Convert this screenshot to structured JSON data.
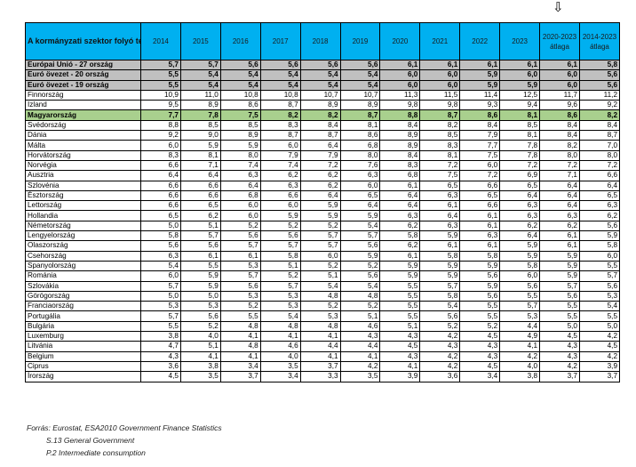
{
  "marker_arrow": "⇩",
  "header": {
    "label": "A kormányzati szektor folyó termelő felhasználása",
    "columns": [
      "2014",
      "2015",
      "2016",
      "2017",
      "2018",
      "2019",
      "2020",
      "2021",
      "2022",
      "2023",
      "2020-2023 átlaga",
      "2014-2023 átlaga"
    ]
  },
  "colors": {
    "header": "#00b0f0",
    "aggregate": "#c0c0c0",
    "highlight": "#a9d08e"
  },
  "rows": [
    {
      "name": "Európai Unió - 27 ország",
      "type": "agg",
      "values": [
        "5,7",
        "5,7",
        "5,6",
        "5,6",
        "5,6",
        "5,6",
        "6,1",
        "6,1",
        "6,1",
        "6,1",
        "6,1",
        "5,8"
      ]
    },
    {
      "name": "Euró övezet - 20 ország",
      "type": "agg",
      "values": [
        "5,5",
        "5,4",
        "5,4",
        "5,4",
        "5,4",
        "5,4",
        "6,0",
        "6,0",
        "5,9",
        "6,0",
        "6,0",
        "5,6"
      ]
    },
    {
      "name": "Euró övezet - 19 ország",
      "type": "agg",
      "values": [
        "5,5",
        "5,4",
        "5,4",
        "5,4",
        "5,4",
        "5,4",
        "6,0",
        "6,0",
        "5,9",
        "5,9",
        "6,0",
        "5,6"
      ]
    },
    {
      "name": "Finnország",
      "type": "",
      "values": [
        "10,9",
        "11,0",
        "10,8",
        "10,8",
        "10,7",
        "10,7",
        "11,3",
        "11,5",
        "11,4",
        "12,5",
        "11,7",
        "11,2"
      ]
    },
    {
      "name": "Izland",
      "type": "",
      "values": [
        "9,5",
        "8,9",
        "8,6",
        "8,7",
        "8,9",
        "8,9",
        "9,8",
        "9,8",
        "9,3",
        "9,4",
        "9,6",
        "9,2"
      ]
    },
    {
      "name": "Magyarország",
      "type": "hu",
      "values": [
        "7,7",
        "7,8",
        "7,5",
        "8,2",
        "8,2",
        "8,7",
        "8,8",
        "8,7",
        "8,6",
        "8,1",
        "8,6",
        "8,2"
      ]
    },
    {
      "name": "Svédország",
      "type": "",
      "values": [
        "8,8",
        "8,5",
        "8,5",
        "8,3",
        "8,4",
        "8,1",
        "8,4",
        "8,2",
        "8,4",
        "8,5",
        "8,4",
        "8,4"
      ]
    },
    {
      "name": "Dánia",
      "type": "",
      "values": [
        "9,2",
        "9,0",
        "8,9",
        "8,7",
        "8,7",
        "8,6",
        "8,9",
        "8,5",
        "7,9",
        "8,1",
        "8,4",
        "8,7"
      ]
    },
    {
      "name": "Málta",
      "type": "",
      "values": [
        "6,0",
        "5,9",
        "5,9",
        "6,0",
        "6,4",
        "6,8",
        "8,9",
        "8,3",
        "7,7",
        "7,8",
        "8,2",
        "7,0"
      ]
    },
    {
      "name": "Horvátország",
      "type": "",
      "values": [
        "8,3",
        "8,1",
        "8,0",
        "7,9",
        "7,9",
        "8,0",
        "8,4",
        "8,1",
        "7,5",
        "7,8",
        "8,0",
        "8,0"
      ]
    },
    {
      "name": "Norvégia",
      "type": "",
      "values": [
        "6,6",
        "7,1",
        "7,4",
        "7,4",
        "7,2",
        "7,6",
        "8,3",
        "7,2",
        "6,0",
        "7,2",
        "7,2",
        "7,2"
      ]
    },
    {
      "name": "Ausztria",
      "type": "",
      "values": [
        "6,4",
        "6,4",
        "6,3",
        "6,2",
        "6,2",
        "6,3",
        "6,8",
        "7,5",
        "7,2",
        "6,9",
        "7,1",
        "6,6"
      ]
    },
    {
      "name": "Szlovénia",
      "type": "",
      "values": [
        "6,6",
        "6,6",
        "6,4",
        "6,3",
        "6,2",
        "6,0",
        "6,1",
        "6,5",
        "6,6",
        "6,5",
        "6,4",
        "6,4"
      ]
    },
    {
      "name": "Észtország",
      "type": "",
      "values": [
        "6,6",
        "6,6",
        "6,8",
        "6,6",
        "6,4",
        "6,5",
        "6,4",
        "6,3",
        "6,5",
        "6,4",
        "6,4",
        "6,5"
      ]
    },
    {
      "name": "Lettország",
      "type": "",
      "values": [
        "6,6",
        "6,5",
        "6,0",
        "6,0",
        "5,9",
        "6,4",
        "6,4",
        "6,1",
        "6,6",
        "6,3",
        "6,4",
        "6,3"
      ]
    },
    {
      "name": "Hollandia",
      "type": "",
      "values": [
        "6,5",
        "6,2",
        "6,0",
        "5,9",
        "5,9",
        "5,9",
        "6,3",
        "6,4",
        "6,1",
        "6,3",
        "6,3",
        "6,2"
      ]
    },
    {
      "name": "Németország",
      "type": "",
      "values": [
        "5,0",
        "5,1",
        "5,2",
        "5,2",
        "5,2",
        "5,4",
        "6,2",
        "6,3",
        "6,1",
        "6,2",
        "6,2",
        "5,6"
      ]
    },
    {
      "name": "Lengyelország",
      "type": "",
      "values": [
        "5,8",
        "5,7",
        "5,6",
        "5,6",
        "5,7",
        "5,7",
        "5,8",
        "5,9",
        "6,3",
        "6,4",
        "6,1",
        "5,9"
      ]
    },
    {
      "name": "Olaszország",
      "type": "",
      "values": [
        "5,6",
        "5,6",
        "5,7",
        "5,7",
        "5,7",
        "5,6",
        "6,2",
        "6,1",
        "6,1",
        "5,9",
        "6,1",
        "5,8"
      ]
    },
    {
      "name": "Csehország",
      "type": "",
      "values": [
        "6,3",
        "6,1",
        "6,1",
        "5,8",
        "6,0",
        "5,9",
        "6,1",
        "5,8",
        "5,8",
        "5,9",
        "5,9",
        "6,0"
      ]
    },
    {
      "name": "Spanyolország",
      "type": "",
      "values": [
        "5,4",
        "5,5",
        "5,3",
        "5,1",
        "5,2",
        "5,2",
        "5,9",
        "5,9",
        "5,9",
        "5,8",
        "5,9",
        "5,5"
      ]
    },
    {
      "name": "Románia",
      "type": "",
      "values": [
        "6,0",
        "5,9",
        "5,7",
        "5,2",
        "5,1",
        "5,6",
        "5,9",
        "5,9",
        "5,6",
        "6,0",
        "5,9",
        "5,7"
      ]
    },
    {
      "name": "Szlovákia",
      "type": "",
      "values": [
        "5,7",
        "5,9",
        "5,6",
        "5,7",
        "5,4",
        "5,4",
        "5,5",
        "5,7",
        "5,9",
        "5,6",
        "5,7",
        "5,6"
      ]
    },
    {
      "name": "Görögország",
      "type": "",
      "values": [
        "5,0",
        "5,0",
        "5,3",
        "5,3",
        "4,8",
        "4,8",
        "5,5",
        "5,8",
        "5,6",
        "5,5",
        "5,6",
        "5,3"
      ]
    },
    {
      "name": "Franciaország",
      "type": "",
      "values": [
        "5,3",
        "5,3",
        "5,2",
        "5,3",
        "5,2",
        "5,2",
        "5,5",
        "5,4",
        "5,5",
        "5,7",
        "5,5",
        "5,4"
      ]
    },
    {
      "name": "Portugália",
      "type": "",
      "values": [
        "5,7",
        "5,6",
        "5,5",
        "5,4",
        "5,3",
        "5,1",
        "5,5",
        "5,6",
        "5,5",
        "5,3",
        "5,5",
        "5,5"
      ]
    },
    {
      "name": "Bulgária",
      "type": "",
      "values": [
        "5,5",
        "5,2",
        "4,8",
        "4,8",
        "4,8",
        "4,6",
        "5,1",
        "5,2",
        "5,2",
        "4,4",
        "5,0",
        "5,0"
      ]
    },
    {
      "name": "Luxemburg",
      "type": "",
      "values": [
        "3,8",
        "4,0",
        "4,1",
        "4,1",
        "4,1",
        "4,3",
        "4,3",
        "4,2",
        "4,5",
        "4,9",
        "4,5",
        "4,2"
      ]
    },
    {
      "name": "Litvánia",
      "type": "",
      "values": [
        "4,7",
        "5,1",
        "4,8",
        "4,6",
        "4,4",
        "4,4",
        "4,5",
        "4,3",
        "4,3",
        "4,1",
        "4,3",
        "4,5"
      ]
    },
    {
      "name": "Belgium",
      "type": "",
      "values": [
        "4,3",
        "4,1",
        "4,1",
        "4,0",
        "4,1",
        "4,1",
        "4,3",
        "4,2",
        "4,3",
        "4,2",
        "4,3",
        "4,2"
      ]
    },
    {
      "name": "Ciprus",
      "type": "",
      "values": [
        "3,6",
        "3,8",
        "3,4",
        "3,5",
        "3,7",
        "4,2",
        "4,1",
        "4,2",
        "4,5",
        "4,0",
        "4,2",
        "3,9"
      ]
    },
    {
      "name": "Írország",
      "type": "",
      "values": [
        "4,5",
        "3,5",
        "3,7",
        "3,4",
        "3,3",
        "3,5",
        "3,9",
        "3,6",
        "3,4",
        "3,8",
        "3,7",
        "3,7"
      ]
    }
  ],
  "footer": {
    "source": "Forrás: Eurostat, ESA2010 Government Finance Statistics",
    "line2": "S.13 General Government",
    "line3": "P.2 Intermediate consumption"
  }
}
